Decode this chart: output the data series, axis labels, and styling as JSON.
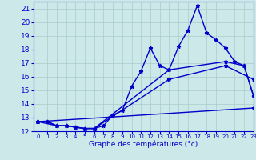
{
  "xlabel": "Graphe des températures (°c)",
  "bg_color": "#cce8e8",
  "grid_color": "#aacccc",
  "line_color": "#0000cc",
  "xlim": [
    -0.5,
    23
  ],
  "ylim": [
    12,
    21.5
  ],
  "xticks": [
    0,
    1,
    2,
    3,
    4,
    5,
    6,
    7,
    8,
    9,
    10,
    11,
    12,
    13,
    14,
    15,
    16,
    17,
    18,
    19,
    20,
    21,
    22,
    23
  ],
  "yticks": [
    12,
    13,
    14,
    15,
    16,
    17,
    18,
    19,
    20,
    21
  ],
  "line1_x": [
    0,
    1,
    2,
    3,
    4,
    5,
    6,
    7,
    8,
    9,
    10,
    11,
    12,
    13,
    14,
    15,
    16,
    17,
    18,
    19,
    20,
    21,
    22,
    23
  ],
  "line1_y": [
    12.7,
    12.7,
    12.4,
    12.4,
    12.3,
    12.2,
    12.2,
    12.4,
    13.2,
    13.5,
    15.3,
    16.4,
    18.1,
    16.8,
    16.5,
    18.2,
    19.4,
    21.2,
    19.2,
    18.7,
    18.1,
    17.1,
    16.8,
    14.6
  ],
  "line2_x": [
    0,
    1,
    2,
    3,
    4,
    5,
    6,
    14,
    20,
    22,
    23
  ],
  "line2_y": [
    12.7,
    12.7,
    12.4,
    12.4,
    12.3,
    12.2,
    12.2,
    16.5,
    17.1,
    16.8,
    14.6
  ],
  "line3_x": [
    0,
    2,
    3,
    4,
    5,
    6,
    14,
    20,
    23
  ],
  "line3_y": [
    12.7,
    12.4,
    12.4,
    12.3,
    12.2,
    12.2,
    15.8,
    16.8,
    15.8
  ],
  "line4_x": [
    0,
    23
  ],
  "line4_y": [
    12.7,
    13.7
  ],
  "marker": "*",
  "markersize": 3.5,
  "linewidth": 1.0
}
